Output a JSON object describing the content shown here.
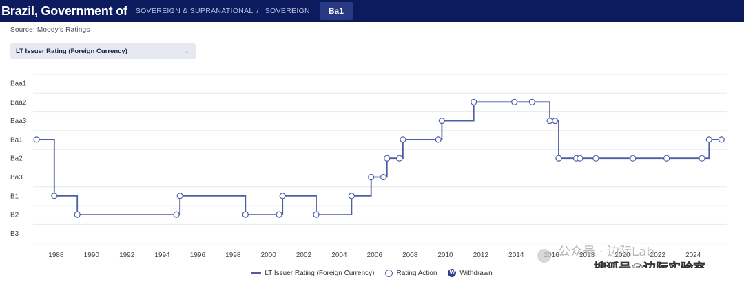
{
  "header": {
    "issuer": "Brazil, Government of",
    "crumb_sector": "SOVEREIGN & SUPRANATIONAL",
    "crumb_separator": "/",
    "crumb_type": "SOVEREIGN",
    "current_rating": "Ba1"
  },
  "source": "Source: Moody's Ratings",
  "dropdown": {
    "selected": "LT Issuer Rating (Foreign Currency)"
  },
  "legend": {
    "series_label": "LT Issuer Rating (Foreign Currency)",
    "action_label": "Rating Action",
    "withdrawn_label": "Withdrawn",
    "withdrawn_glyph": "W"
  },
  "colors": {
    "header_bg": "#0c1a5e",
    "series": "#4d5ea3",
    "withdrawn": "#2c3d8c"
  },
  "chart_data": {
    "type": "line",
    "step": true,
    "y_categories": [
      "Baa1",
      "Baa2",
      "Baa3",
      "Ba1",
      "Ba2",
      "Ba3",
      "B1",
      "B2",
      "B3"
    ],
    "xlim": [
      1986.7,
      2025.9
    ],
    "x_ticks": [
      1988,
      1990,
      1992,
      1994,
      1996,
      1998,
      2000,
      2002,
      2004,
      2006,
      2008,
      2010,
      2012,
      2014,
      2016,
      2018,
      2020,
      2022,
      2024
    ],
    "grid": true,
    "series": [
      {
        "name": "LT Issuer Rating (Foreign Currency)",
        "points": [
          {
            "x": 1986.9,
            "y": "Ba1"
          },
          {
            "x": 1987.9,
            "y": "B1"
          },
          {
            "x": 1989.2,
            "y": "B2"
          },
          {
            "x": 1994.8,
            "y": "B2"
          },
          {
            "x": 1995.0,
            "y": "B1"
          },
          {
            "x": 1998.7,
            "y": "B2"
          },
          {
            "x": 2000.6,
            "y": "B2"
          },
          {
            "x": 2000.8,
            "y": "B1"
          },
          {
            "x": 2002.7,
            "y": "B2"
          },
          {
            "x": 2004.7,
            "y": "B1"
          },
          {
            "x": 2005.8,
            "y": "Ba3"
          },
          {
            "x": 2006.5,
            "y": "Ba3"
          },
          {
            "x": 2006.7,
            "y": "Ba2"
          },
          {
            "x": 2007.4,
            "y": "Ba2"
          },
          {
            "x": 2007.6,
            "y": "Ba1"
          },
          {
            "x": 2009.6,
            "y": "Ba1"
          },
          {
            "x": 2009.8,
            "y": "Baa3"
          },
          {
            "x": 2011.6,
            "y": "Baa2"
          },
          {
            "x": 2013.9,
            "y": "Baa2"
          },
          {
            "x": 2014.9,
            "y": "Baa2"
          },
          {
            "x": 2015.9,
            "y": "Baa3"
          },
          {
            "x": 2016.2,
            "y": "Baa3"
          },
          {
            "x": 2016.4,
            "y": "Ba2"
          },
          {
            "x": 2017.4,
            "y": "Ba2"
          },
          {
            "x": 2017.6,
            "y": "Ba2"
          },
          {
            "x": 2018.5,
            "y": "Ba2"
          },
          {
            "x": 2020.6,
            "y": "Ba2"
          },
          {
            "x": 2022.5,
            "y": "Ba2"
          },
          {
            "x": 2024.5,
            "y": "Ba2"
          },
          {
            "x": 2024.9,
            "y": "Ba1"
          },
          {
            "x": 2025.6,
            "y": "Ba1"
          }
        ],
        "end_x": 2025.6
      }
    ]
  },
  "watermark": {
    "platform": "公众号",
    "dot": "·",
    "account": "边际Lab",
    "footer": "搜狐号@边际实验室"
  }
}
